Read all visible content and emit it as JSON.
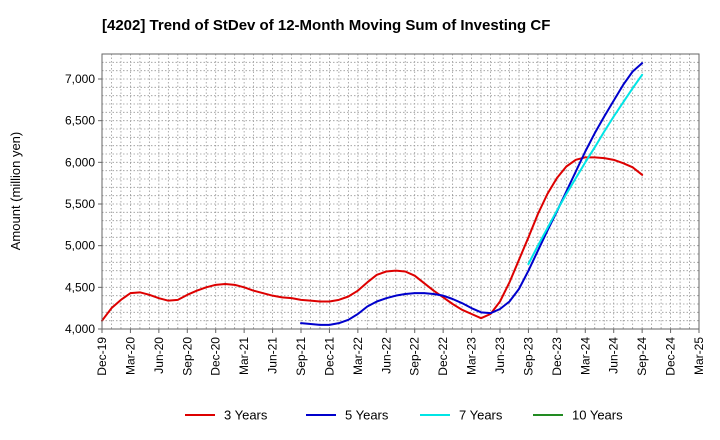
{
  "chart_data": {
    "type": "line",
    "title": "[4202]  Trend of StDev of 12-Month Moving Sum of Investing CF",
    "xlabel": "",
    "ylabel": "Amount (million yen)",
    "ylim": [
      4000,
      7300
    ],
    "yticks": [
      4000,
      4500,
      5000,
      5500,
      6000,
      6500,
      7000
    ],
    "ytick_labels": [
      "4,000",
      "4,500",
      "5,000",
      "5,500",
      "6,000",
      "6,500",
      "7,000"
    ],
    "x_tick_labels": [
      "Dec-19",
      "Mar-20",
      "Jun-20",
      "Sep-20",
      "Dec-20",
      "Mar-21",
      "Jun-21",
      "Sep-21",
      "Dec-21",
      "Mar-22",
      "Jun-22",
      "Sep-22",
      "Dec-22",
      "Mar-23",
      "Jun-23",
      "Sep-23",
      "Dec-23",
      "Mar-24",
      "Jun-24",
      "Sep-24",
      "Dec-24",
      "Mar-25"
    ],
    "grid": true,
    "legend_position": "bottom",
    "series": [
      {
        "name": "3 Years",
        "color": "#dd0000",
        "x": [
          "Dec-19",
          "Jan-20",
          "Feb-20",
          "Mar-20",
          "Apr-20",
          "May-20",
          "Jun-20",
          "Jul-20",
          "Aug-20",
          "Sep-20",
          "Oct-20",
          "Nov-20",
          "Dec-20",
          "Jan-21",
          "Feb-21",
          "Mar-21",
          "Apr-21",
          "May-21",
          "Jun-21",
          "Jul-21",
          "Aug-21",
          "Sep-21",
          "Oct-21",
          "Nov-21",
          "Dec-21",
          "Jan-22",
          "Feb-22",
          "Mar-22",
          "Apr-22",
          "May-22",
          "Jun-22",
          "Jul-22",
          "Aug-22",
          "Sep-22",
          "Oct-22",
          "Nov-22",
          "Dec-22",
          "Jan-23",
          "Feb-23",
          "Mar-23",
          "Apr-23",
          "May-23",
          "Jun-23",
          "Jul-23",
          "Aug-23",
          "Sep-23",
          "Oct-23",
          "Nov-23",
          "Dec-23",
          "Jan-24",
          "Feb-24",
          "Mar-24",
          "Apr-24",
          "May-24",
          "Jun-24",
          "Jul-24",
          "Aug-24",
          "Sep-24"
        ],
        "values": [
          4100,
          4250,
          4350,
          4430,
          4440,
          4410,
          4370,
          4340,
          4350,
          4410,
          4460,
          4500,
          4530,
          4540,
          4530,
          4500,
          4460,
          4430,
          4400,
          4380,
          4370,
          4350,
          4340,
          4330,
          4330,
          4350,
          4390,
          4460,
          4560,
          4650,
          4690,
          4700,
          4690,
          4640,
          4550,
          4460,
          4380,
          4300,
          4230,
          4180,
          4130,
          4180,
          4330,
          4560,
          4830,
          5100,
          5380,
          5620,
          5810,
          5950,
          6030,
          6060,
          6060,
          6050,
          6030,
          5990,
          5940,
          5850
        ]
      },
      {
        "name": "5 Years",
        "color": "#0000cc",
        "x": [
          "Sep-21",
          "Oct-21",
          "Nov-21",
          "Dec-21",
          "Jan-22",
          "Feb-22",
          "Mar-22",
          "Apr-22",
          "May-22",
          "Jun-22",
          "Jul-22",
          "Aug-22",
          "Sep-22",
          "Oct-22",
          "Nov-22",
          "Dec-22",
          "Jan-23",
          "Feb-23",
          "Mar-23",
          "Apr-23",
          "May-23",
          "Jun-23",
          "Jul-23",
          "Aug-23",
          "Sep-23",
          "Oct-23",
          "Nov-23",
          "Dec-23",
          "Jan-24",
          "Feb-24",
          "Mar-24",
          "Apr-24",
          "May-24",
          "Jun-24",
          "Jul-24",
          "Aug-24",
          "Sep-24"
        ],
        "values": [
          4070,
          4060,
          4050,
          4050,
          4070,
          4110,
          4180,
          4270,
          4330,
          4370,
          4400,
          4420,
          4430,
          4430,
          4420,
          4400,
          4360,
          4310,
          4250,
          4200,
          4190,
          4240,
          4330,
          4480,
          4700,
          4940,
          5180,
          5410,
          5650,
          5890,
          6130,
          6350,
          6550,
          6740,
          6930,
          7090,
          7190
        ]
      },
      {
        "name": "7 Years",
        "color": "#00e5e5",
        "x": [
          "Sep-23",
          "Oct-23",
          "Nov-23",
          "Dec-23",
          "Jan-24",
          "Feb-24",
          "Mar-24",
          "Apr-24",
          "May-24",
          "Jun-24",
          "Jul-24",
          "Aug-24",
          "Sep-24"
        ],
        "values": [
          4780,
          5000,
          5210,
          5420,
          5620,
          5810,
          6000,
          6180,
          6370,
          6550,
          6720,
          6890,
          7050
        ]
      },
      {
        "name": "10 Years",
        "color": "#228b22",
        "x": [],
        "values": []
      }
    ]
  }
}
